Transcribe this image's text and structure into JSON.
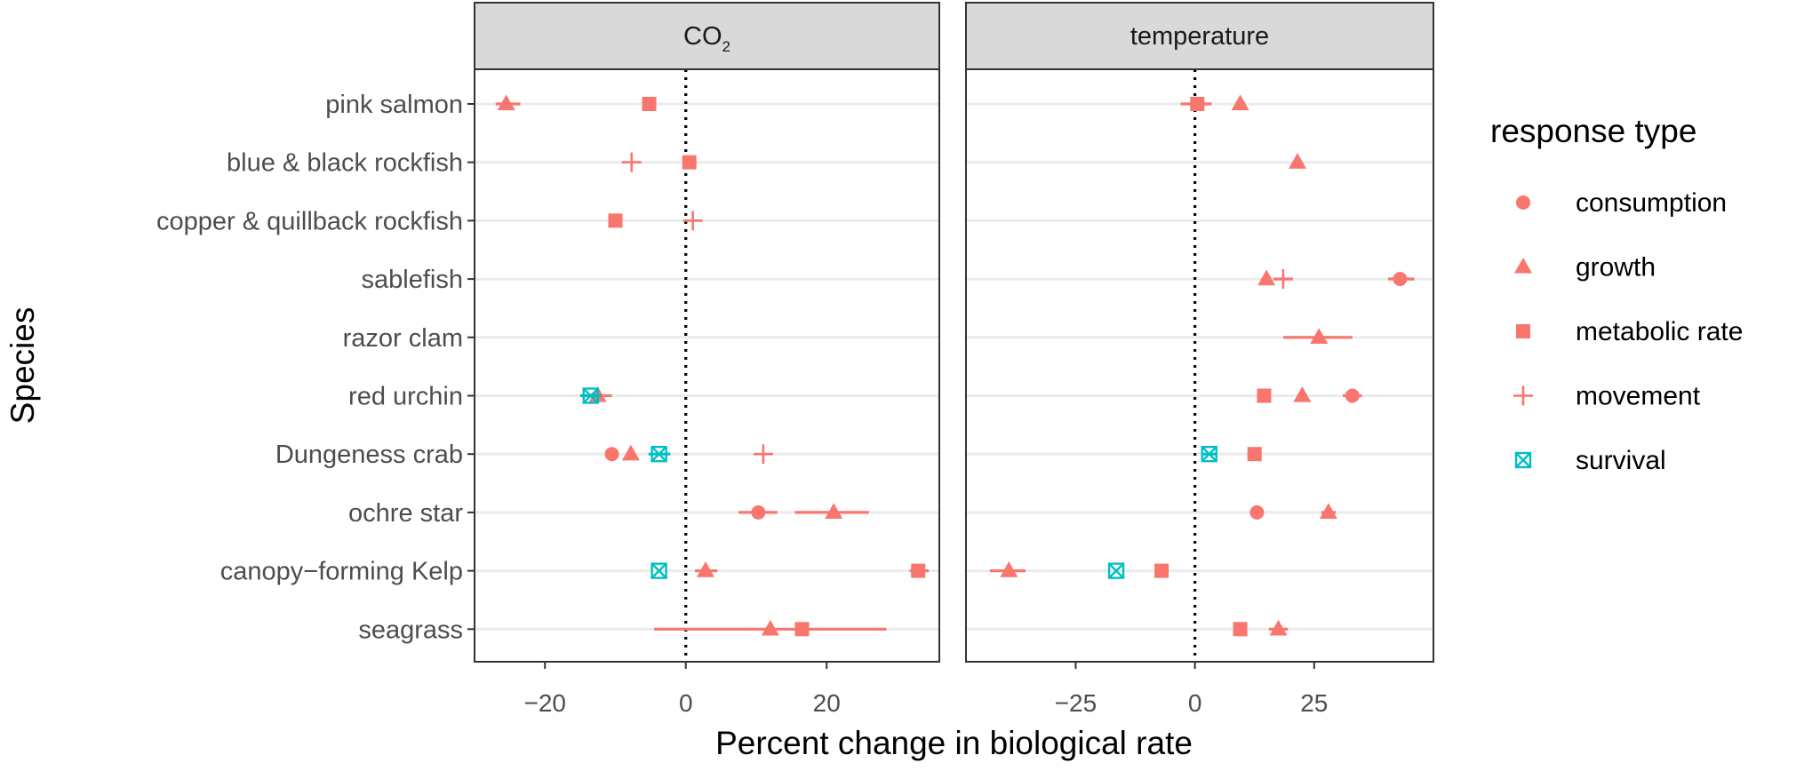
{
  "colors": {
    "salmon": "#F8766D",
    "teal": "#00BFC4",
    "strip": "#D9D9D9",
    "grid": "#EBEBEB",
    "axisText": "#4D4D4D",
    "text": "#1A1A1A"
  },
  "chart_data": {
    "type": "scatter",
    "xlabel": "Percent change in biological rate",
    "ylabel": "Species",
    "categories": [
      "pink salmon",
      "blue & black rockfish",
      "copper & quillback rockfish",
      "sablefish",
      "razor clam",
      "red urchin",
      "Dungeness crab",
      "ochre star",
      "canopy−forming Kelp",
      "seagrass"
    ],
    "legend": {
      "title": "response type",
      "position": "right",
      "entries": [
        {
          "name": "consumption",
          "shape": "circle",
          "color": "#F8766D"
        },
        {
          "name": "growth",
          "shape": "triangle",
          "color": "#F8766D"
        },
        {
          "name": "metabolic rate",
          "shape": "square",
          "color": "#F8766D"
        },
        {
          "name": "movement",
          "shape": "plus",
          "color": "#F8766D"
        },
        {
          "name": "survival",
          "shape": "square-x",
          "color": "#00BFC4"
        }
      ]
    },
    "panels": [
      {
        "strip_main": "CO",
        "strip_sub": "2",
        "xlim": [
          -30,
          36
        ],
        "ticks": [
          -20,
          0,
          20
        ],
        "tick_labels": [
          "−20",
          "0",
          "20"
        ],
        "reference_line": 0,
        "points": [
          {
            "species": "pink salmon",
            "type": "growth",
            "x": -25.5,
            "lo": -27,
            "hi": -23.5
          },
          {
            "species": "pink salmon",
            "type": "metabolic rate",
            "x": -5.2
          },
          {
            "species": "blue & black rockfish",
            "type": "movement",
            "x": -7.7
          },
          {
            "species": "blue & black rockfish",
            "type": "metabolic rate",
            "x": 0.5
          },
          {
            "species": "copper & quillback rockfish",
            "type": "metabolic rate",
            "x": -10
          },
          {
            "species": "copper & quillback rockfish",
            "type": "movement",
            "x": 1
          },
          {
            "species": "red urchin",
            "type": "growth",
            "x": -12.5,
            "lo": -14,
            "hi": -10.5
          },
          {
            "species": "red urchin",
            "type": "survival",
            "x": -13.5,
            "lo": -15,
            "hi": -12
          },
          {
            "species": "Dungeness crab",
            "type": "consumption",
            "x": -10.5
          },
          {
            "species": "Dungeness crab",
            "type": "growth",
            "x": -7.8
          },
          {
            "species": "Dungeness crab",
            "type": "survival",
            "x": -3.8,
            "lo": -5.3,
            "hi": -2.2
          },
          {
            "species": "Dungeness crab",
            "type": "movement",
            "x": 11
          },
          {
            "species": "ochre star",
            "type": "consumption",
            "x": 10.3,
            "lo": 7.5,
            "hi": 13
          },
          {
            "species": "ochre star",
            "type": "growth",
            "x": 21,
            "lo": 15.5,
            "hi": 26
          },
          {
            "species": "canopy−forming Kelp",
            "type": "survival",
            "x": -3.8
          },
          {
            "species": "canopy−forming Kelp",
            "type": "growth",
            "x": 2.8,
            "lo": 1.3,
            "hi": 4.5
          },
          {
            "species": "canopy−forming Kelp",
            "type": "metabolic rate",
            "x": 33,
            "lo": 31.8,
            "hi": 34.5
          },
          {
            "species": "seagrass",
            "type": "growth",
            "x": 12,
            "lo": -4.5,
            "hi": 28.5
          },
          {
            "species": "seagrass",
            "type": "metabolic rate",
            "x": 16.5
          }
        ]
      },
      {
        "strip_main": "temperature",
        "strip_sub": "",
        "xlim": [
          -48,
          50
        ],
        "ticks": [
          -25,
          0,
          25
        ],
        "tick_labels": [
          "−25",
          "0",
          "25"
        ],
        "reference_line": 0,
        "points": [
          {
            "species": "pink salmon",
            "type": "metabolic rate",
            "x": 0.5,
            "lo": -3,
            "hi": 3.5
          },
          {
            "species": "pink salmon",
            "type": "growth",
            "x": 9.5
          },
          {
            "species": "blue & black rockfish",
            "type": "growth",
            "x": 21.5
          },
          {
            "species": "sablefish",
            "type": "growth",
            "x": 15
          },
          {
            "species": "sablefish",
            "type": "movement",
            "x": 18.5,
            "lo": 16.5,
            "hi": 20.5
          },
          {
            "species": "sablefish",
            "type": "consumption",
            "x": 43,
            "lo": 40.5,
            "hi": 46
          },
          {
            "species": "razor clam",
            "type": "growth",
            "x": 26,
            "lo": 18.5,
            "hi": 33
          },
          {
            "species": "red urchin",
            "type": "metabolic rate",
            "x": 14.5
          },
          {
            "species": "red urchin",
            "type": "growth",
            "x": 22.5
          },
          {
            "species": "red urchin",
            "type": "consumption",
            "x": 33,
            "lo": 31,
            "hi": 35
          },
          {
            "species": "Dungeness crab",
            "type": "survival",
            "x": 3,
            "lo": 1.5,
            "hi": 4.5
          },
          {
            "species": "Dungeness crab",
            "type": "metabolic rate",
            "x": 12.5
          },
          {
            "species": "ochre star",
            "type": "consumption",
            "x": 13
          },
          {
            "species": "ochre star",
            "type": "growth",
            "x": 28,
            "lo": 26.5,
            "hi": 29.5
          },
          {
            "species": "canopy−forming Kelp",
            "type": "growth",
            "x": -39,
            "lo": -43,
            "hi": -35.5
          },
          {
            "species": "canopy−forming Kelp",
            "type": "survival",
            "x": -16.5
          },
          {
            "species": "canopy−forming Kelp",
            "type": "metabolic rate",
            "x": -7
          },
          {
            "species": "seagrass",
            "type": "metabolic rate",
            "x": 9.5
          },
          {
            "species": "seagrass",
            "type": "growth",
            "x": 17.5,
            "lo": 15.5,
            "hi": 19.5
          }
        ]
      }
    ]
  }
}
